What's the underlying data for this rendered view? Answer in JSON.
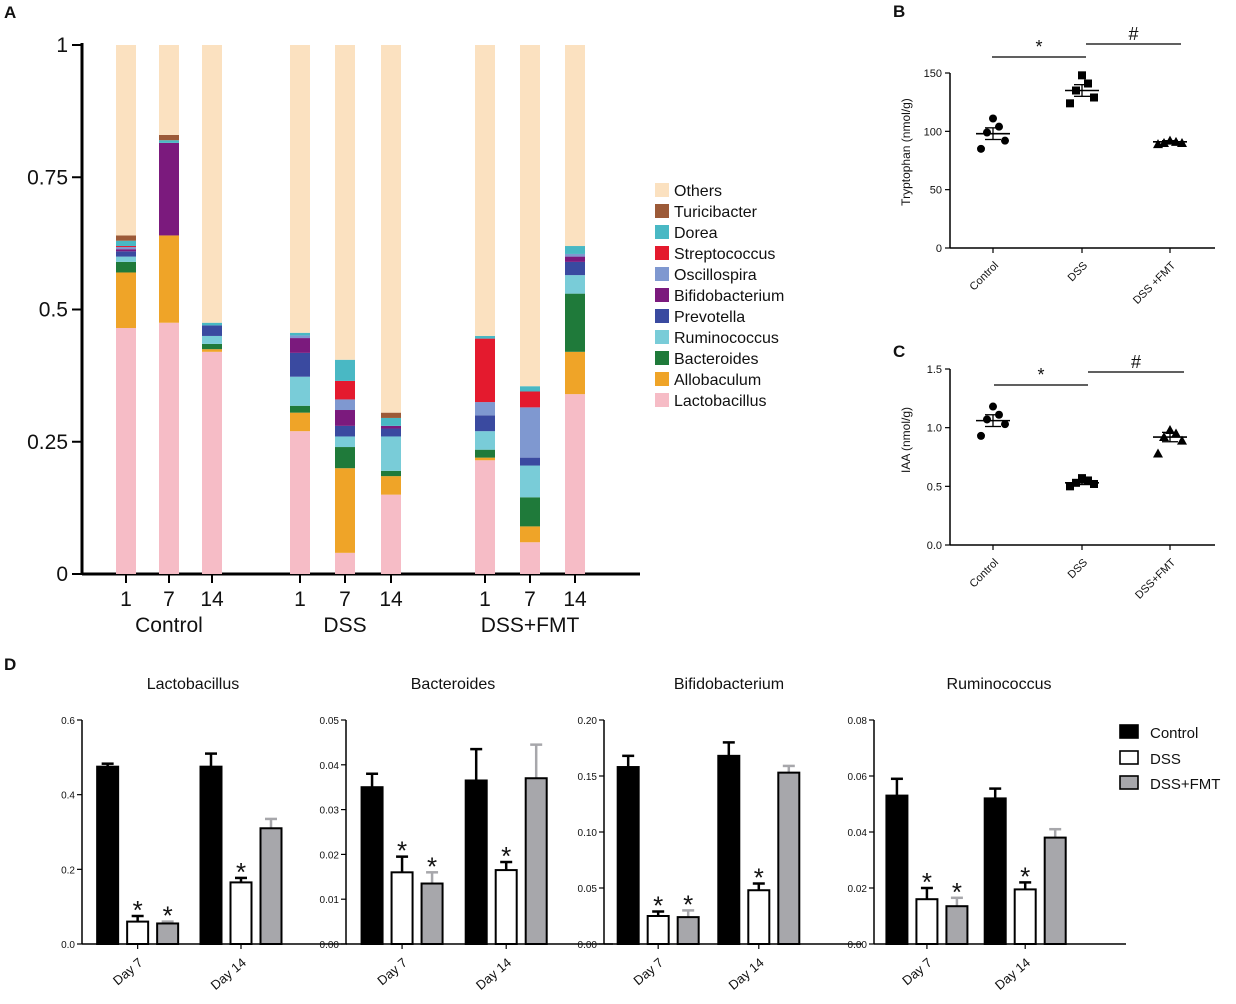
{
  "panel_letters": {
    "a": "A",
    "b": "B",
    "c": "C",
    "d": "D"
  },
  "chart_data": [
    {
      "panel": "A",
      "type": "bar",
      "stacked": true,
      "ylim": [
        0,
        1
      ],
      "yticks": [
        "0",
        "0.25",
        "0.5",
        "0.75",
        "1"
      ],
      "groups": [
        {
          "name": "Control",
          "days": [
            "1",
            "7",
            "14"
          ]
        },
        {
          "name": "DSS",
          "days": [
            "1",
            "7",
            "14"
          ]
        },
        {
          "name": "DSS+FMT",
          "days": [
            "1",
            "7",
            "14"
          ]
        }
      ],
      "series": [
        {
          "name": "Lactobacillus",
          "color": "#f6bcc6",
          "values": [
            0.465,
            0.475,
            0.42,
            0.27,
            0.04,
            0.15,
            0.215,
            0.06,
            0.34
          ]
        },
        {
          "name": "Allobaculum",
          "color": "#efa428",
          "values": [
            0.105,
            0.165,
            0.005,
            0.035,
            0.16,
            0.035,
            0.005,
            0.03,
            0.08
          ]
        },
        {
          "name": "Bacteroides",
          "color": "#1f7a3a",
          "values": [
            0.02,
            0.0,
            0.01,
            0.013,
            0.04,
            0.01,
            0.015,
            0.055,
            0.11
          ]
        },
        {
          "name": "Ruminococcus",
          "color": "#79ccd8",
          "values": [
            0.01,
            0.0,
            0.015,
            0.055,
            0.02,
            0.065,
            0.035,
            0.06,
            0.035
          ]
        },
        {
          "name": "Prevotella",
          "color": "#3a4aa0",
          "values": [
            0.01,
            0.0,
            0.02,
            0.045,
            0.02,
            0.015,
            0.03,
            0.015,
            0.025
          ]
        },
        {
          "name": "Bifidobacterium",
          "color": "#7b1a7d",
          "values": [
            0.004,
            0.175,
            0.0,
            0.028,
            0.03,
            0.005,
            0.0,
            0.0,
            0.01
          ]
        },
        {
          "name": "Oscillospira",
          "color": "#7f98d0",
          "values": [
            0.004,
            0.0,
            0.0,
            0.005,
            0.02,
            0.0,
            0.025,
            0.095,
            0.005
          ]
        },
        {
          "name": "Streptococcus",
          "color": "#e41a2e",
          "values": [
            0.002,
            0.0,
            0.0,
            0.0,
            0.035,
            0.0,
            0.12,
            0.03,
            0.0
          ]
        },
        {
          "name": "Dorea",
          "color": "#49b8c4",
          "values": [
            0.01,
            0.005,
            0.005,
            0.005,
            0.04,
            0.015,
            0.005,
            0.01,
            0.015
          ]
        },
        {
          "name": "Turicibacter",
          "color": "#9c5a38",
          "values": [
            0.01,
            0.01,
            0.0,
            0.0,
            0.0,
            0.01,
            0.0,
            0.0,
            0.0
          ]
        },
        {
          "name": "Others",
          "color": "#fbe1c0",
          "values": [
            0.36,
            0.17,
            0.525,
            0.544,
            0.595,
            0.695,
            0.55,
            0.645,
            0.38
          ]
        }
      ],
      "legend_order": [
        "Others",
        "Turicibacter",
        "Dorea",
        "Streptococcus",
        "Oscillospira",
        "Bifidobacterium",
        "Prevotella",
        "Ruminococcus",
        "Bacteroides",
        "Allobaculum",
        "Lactobacillus"
      ]
    },
    {
      "panel": "B",
      "type": "scatter",
      "ylabel": "Tryptophan (nmol/g)",
      "ylim": [
        0,
        150
      ],
      "yticks": [
        "0",
        "50",
        "100",
        "150"
      ],
      "categories": [
        "Control",
        "DSS",
        "DSS +FMT"
      ],
      "points": [
        [
          85,
          92,
          99,
          104,
          111
        ],
        [
          124,
          129,
          135,
          141,
          148
        ],
        [
          89,
          90,
          90,
          91,
          92
        ]
      ],
      "means": [
        98,
        135,
        91
      ],
      "sem": [
        5,
        5,
        1
      ],
      "markers": [
        "circle",
        "square",
        "triangle"
      ],
      "significance": [
        "*",
        "#"
      ]
    },
    {
      "panel": "C",
      "type": "scatter",
      "ylabel": "IAA (nmol/g)",
      "ylim": [
        0,
        1.5
      ],
      "yticks": [
        "0.0",
        "0.5",
        "1.0",
        "1.5"
      ],
      "categories": [
        "Control",
        "DSS",
        "DSS+FMT"
      ],
      "points": [
        [
          0.93,
          1.03,
          1.07,
          1.11,
          1.18
        ],
        [
          0.5,
          0.52,
          0.53,
          0.55,
          0.57
        ],
        [
          0.78,
          0.89,
          0.92,
          0.95,
          0.98
        ]
      ],
      "means": [
        1.06,
        0.53,
        0.92
      ],
      "sem": [
        0.05,
        0.015,
        0.04
      ],
      "markers": [
        "circle",
        "square",
        "triangle"
      ],
      "significance": [
        "*",
        "#"
      ]
    },
    {
      "panel": "D",
      "type": "bar",
      "series_names": [
        "Control",
        "DSS",
        "DSS+FMT"
      ],
      "series_colors": [
        "#000000",
        "#ffffff",
        "#a7a7ab"
      ],
      "categories": [
        "Day 7",
        "Day 14"
      ],
      "subplots": [
        {
          "title": "Lactobacillus",
          "ylim": [
            0,
            0.6
          ],
          "yticks": [
            "0.0",
            "0.2",
            "0.4",
            "0.6"
          ],
          "values": [
            [
              0.475,
              0.475
            ],
            [
              0.06,
              0.165
            ],
            [
              0.055,
              0.31
            ]
          ],
          "errors": [
            [
              0.008,
              0.035
            ],
            [
              0.015,
              0.012
            ],
            [
              0.005,
              0.025
            ]
          ],
          "stars": [
            [
              false,
              false
            ],
            [
              true,
              true
            ],
            [
              true,
              false
            ]
          ]
        },
        {
          "title": "Bacteroides",
          "ylim": [
            0,
            0.05
          ],
          "yticks": [
            "0.00",
            "0.01",
            "0.02",
            "0.03",
            "0.04",
            "0.05"
          ],
          "values": [
            [
              0.035,
              0.0365
            ],
            [
              0.016,
              0.0165
            ],
            [
              0.0135,
              0.037
            ]
          ],
          "errors": [
            [
              0.003,
              0.007
            ],
            [
              0.0035,
              0.0018
            ],
            [
              0.0025,
              0.0075
            ]
          ],
          "stars": [
            [
              false,
              false
            ],
            [
              true,
              true
            ],
            [
              true,
              false
            ]
          ]
        },
        {
          "title": "Bifidobacterium",
          "ylim": [
            0,
            0.2
          ],
          "yticks": [
            "0.00",
            "0.05",
            "0.10",
            "0.15",
            "0.20"
          ],
          "values": [
            [
              0.158,
              0.168
            ],
            [
              0.025,
              0.048
            ],
            [
              0.024,
              0.153
            ]
          ],
          "errors": [
            [
              0.01,
              0.012
            ],
            [
              0.004,
              0.006
            ],
            [
              0.006,
              0.006
            ]
          ],
          "stars": [
            [
              false,
              false
            ],
            [
              true,
              true
            ],
            [
              true,
              false
            ]
          ]
        },
        {
          "title": "Ruminococcus",
          "ylim": [
            0,
            0.08
          ],
          "yticks": [
            "0.00",
            "0.02",
            "0.04",
            "0.06",
            "0.08"
          ],
          "values": [
            [
              0.053,
              0.052
            ],
            [
              0.016,
              0.0195
            ],
            [
              0.0135,
              0.038
            ]
          ],
          "errors": [
            [
              0.006,
              0.0035
            ],
            [
              0.004,
              0.0025
            ],
            [
              0.003,
              0.003
            ]
          ],
          "stars": [
            [
              false,
              false
            ],
            [
              true,
              true
            ],
            [
              true,
              false
            ]
          ]
        }
      ]
    }
  ]
}
